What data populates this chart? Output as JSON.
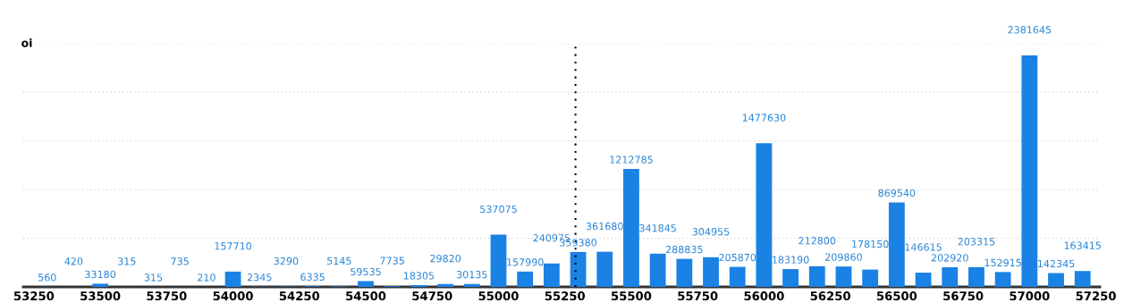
{
  "chart_data": {
    "type": "bar",
    "ylabel": "oi",
    "x": [
      53300,
      53400,
      53500,
      53600,
      53700,
      53800,
      53900,
      54000,
      54100,
      54200,
      54300,
      54400,
      54500,
      54600,
      54700,
      54800,
      54900,
      55000,
      55100,
      55200,
      55300,
      55400,
      55500,
      55600,
      55700,
      55800,
      55900,
      56000,
      56100,
      56200,
      56300,
      56400,
      56500,
      56600,
      56700,
      56800,
      56900,
      57000,
      57100,
      57200
    ],
    "values": [
      560,
      420,
      33180,
      315,
      315,
      735,
      210,
      157710,
      2345,
      3290,
      6335,
      5145,
      59535,
      7735,
      18305,
      29820,
      30135,
      537075,
      157990,
      240975,
      359380,
      361680,
      1212785,
      341845,
      288835,
      304955,
      205870,
      1477630,
      183190,
      212800,
      209860,
      178150,
      869540,
      146615,
      202920,
      203315,
      152915,
      2381645,
      142345,
      163415
    ],
    "color": "#1a82e4",
    "data_labels": true,
    "xlim": [
      53210,
      57265
    ],
    "xticks": [
      53250,
      53500,
      53750,
      54000,
      54250,
      54500,
      54750,
      55000,
      55250,
      55500,
      55750,
      56000,
      56250,
      56500,
      56750,
      57000,
      57250
    ],
    "ylim": [
      0,
      2500000
    ],
    "yticks": [
      {
        "value": 0,
        "label": null
      },
      {
        "value": 500000,
        "label": null
      },
      {
        "value": 1000000,
        "label": null
      },
      {
        "value": 1500000,
        "label": null
      },
      {
        "value": 2000000,
        "label": null
      },
      {
        "value": 2500000,
        "label": null
      }
    ],
    "tick_labels": "x",
    "grid": "y",
    "ref_lines": [
      {
        "axis": "x",
        "value": 55290,
        "color": "#000000",
        "line_style": "dotted"
      }
    ]
  }
}
